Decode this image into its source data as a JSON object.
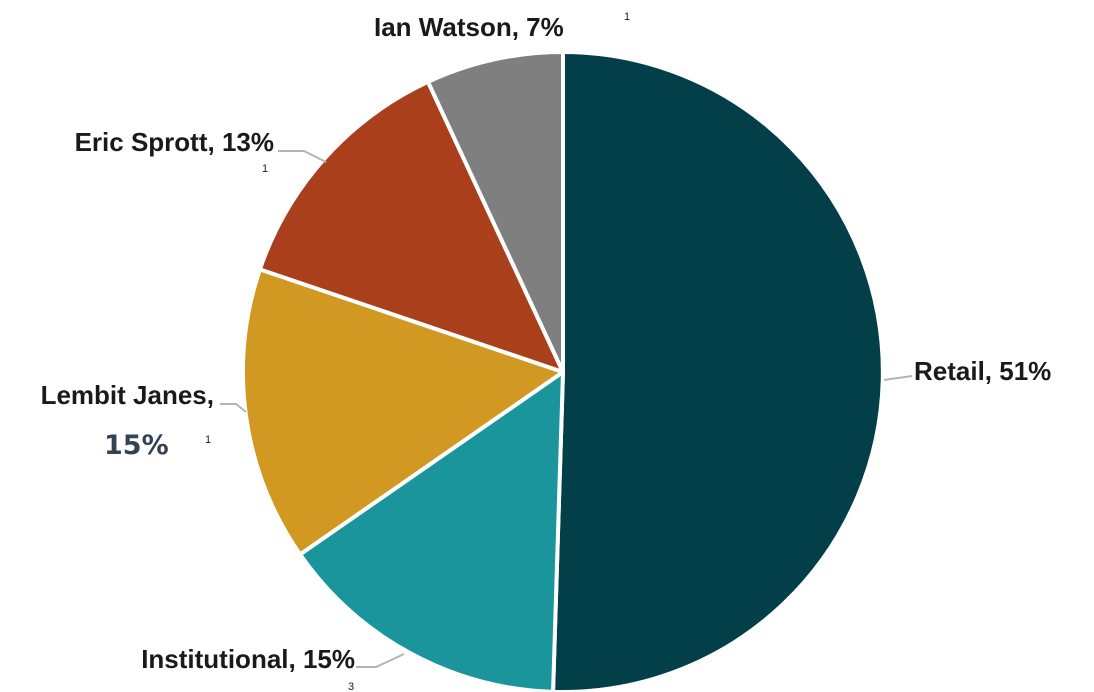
{
  "chart_data": {
    "type": "pie",
    "slices": [
      {
        "label": "Retail",
        "value": 51,
        "color": "#033f48"
      },
      {
        "label": "Institutional",
        "value": 15,
        "color": "#1b959c"
      },
      {
        "label": "Lembit Janes",
        "value": 15,
        "color": "#d19822"
      },
      {
        "label": "Eric Sprott",
        "value": 13,
        "color": "#a9401b"
      },
      {
        "label": "Ian Watson",
        "value": 7,
        "color": "#7f7f7f"
      }
    ],
    "labels": {
      "retail": "Retail, 51%",
      "institutional": "Institutional, 15%",
      "lembit_line1": "Lembit Janes,",
      "lembit_line2": "15%",
      "eric": "Eric Sprott, 13%",
      "ian": "Ian Watson, 7%"
    },
    "footnote_marks": {
      "ian": "1",
      "eric": "1",
      "lembit": "1",
      "institutional": "3"
    }
  }
}
